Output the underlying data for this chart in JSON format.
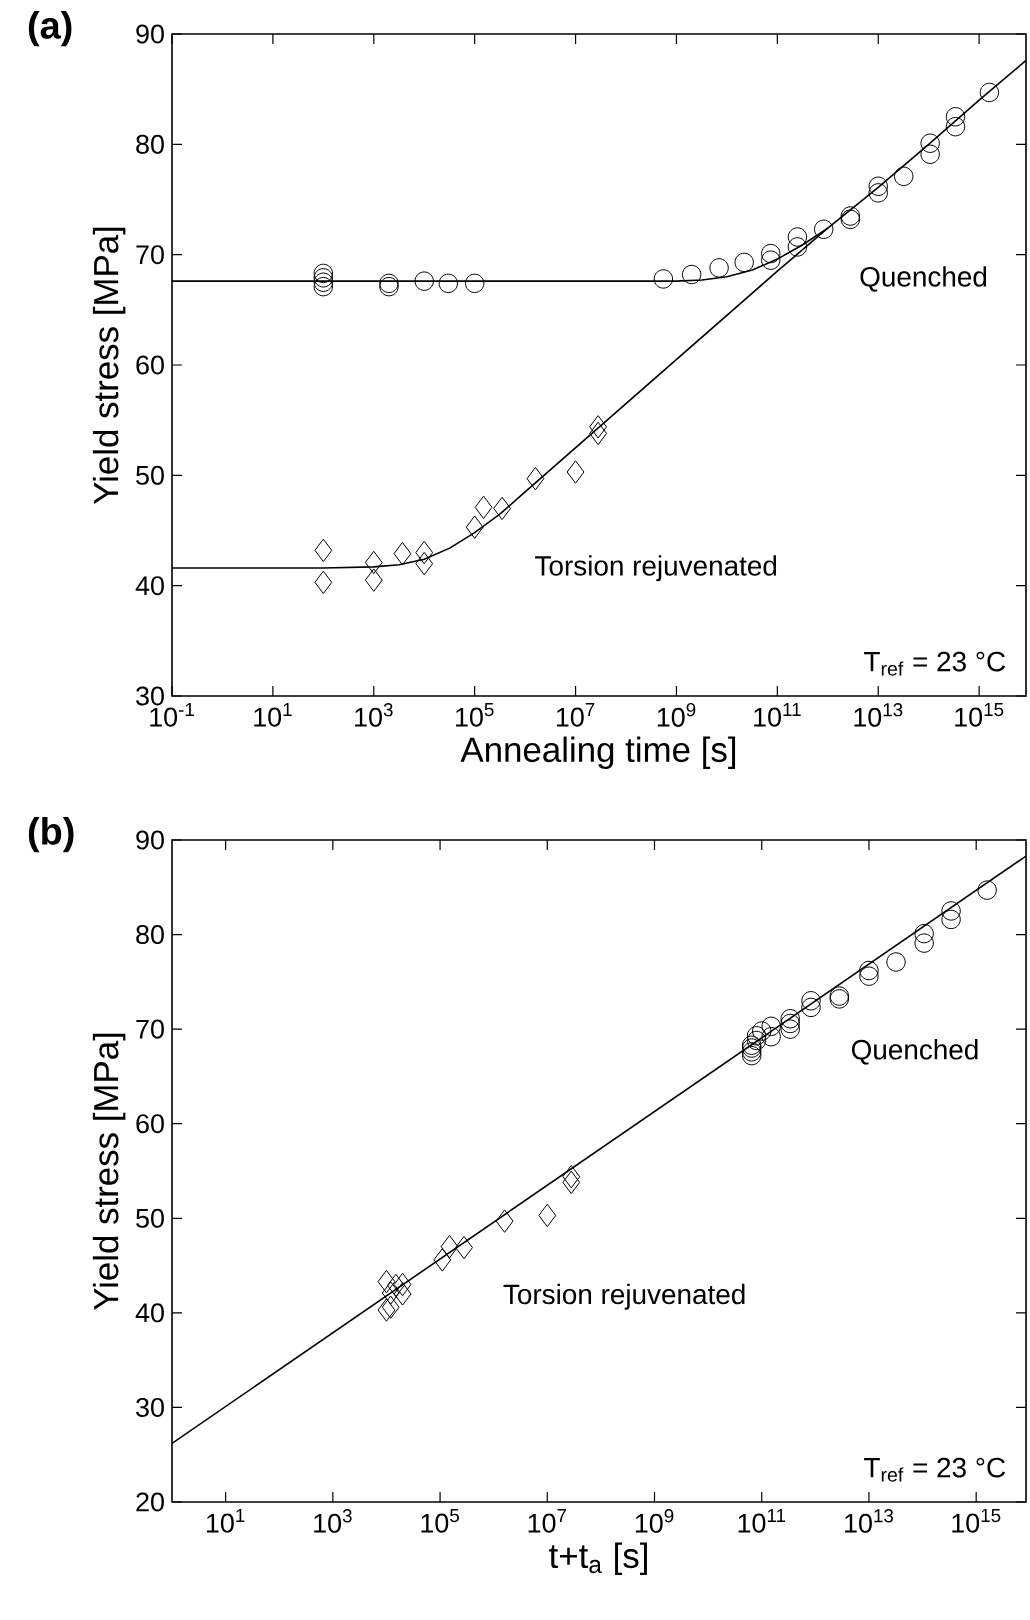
{
  "chart_data": [
    {
      "type": "scatter",
      "title": "(a)",
      "xlabel": "Annealing time [s]",
      "ylabel": "Yield stress [MPa]",
      "log": "x",
      "xlim": [
        0.1,
        8500000000000000.0
      ],
      "ylim": [
        30,
        90
      ],
      "xticks": [
        {
          "value": 0.1,
          "label": "10$^{-1}$"
        },
        {
          "value": 10.0,
          "label": "10$^{1}$"
        },
        {
          "value": 1000.0,
          "label": "10$^{3}$"
        },
        {
          "value": 100000.0,
          "label": "10$^{5}$"
        },
        {
          "value": 10000000.0,
          "label": "10$^{7}$"
        },
        {
          "value": 1000000000.0,
          "label": "10$^{9}$"
        },
        {
          "value": 100000000000.0,
          "label": "10$^{11}$"
        },
        {
          "value": 10000000000000.0,
          "label": "10$^{13}$"
        },
        {
          "value": 1000000000000000.0,
          "label": "10$^{15}$"
        }
      ],
      "yticks": [
        30,
        40,
        50,
        60,
        70,
        80,
        90
      ],
      "series": [
        {
          "type": "scatter",
          "marker": "circle",
          "color": "#000000",
          "x": [
            100.0,
            100.0,
            100.0,
            100.0,
            2000.0,
            2000.0,
            10000.0,
            30000.0,
            100000.0,
            550000000.0,
            2000000000.0,
            7000000000.0,
            22000000000.0,
            74000000000.0,
            74000000000.0,
            250000000000.0,
            250000000000.0,
            830000000000.0,
            2800000000000.0,
            2800000000000.0,
            10000000000000.0,
            10000000000000.0,
            32000000000000.0,
            107000000000000.0,
            107000000000000.0,
            340000000000000.0,
            340000000000000.0,
            1600000000000000.0
          ],
          "values": [
            68.3,
            67.9,
            67.5,
            67.1,
            67.4,
            67.1,
            67.6,
            67.4,
            67.4,
            67.8,
            68.2,
            68.8,
            69.3,
            70.1,
            69.5,
            70.7,
            71.6,
            72.3,
            73.5,
            73.2,
            75.6,
            76.2,
            77.1,
            79.1,
            80.1,
            81.6,
            82.5,
            84.7
          ]
        },
        {
          "type": "scatter",
          "marker": "diamond",
          "color": "#000000",
          "x": [
            100.0,
            100.0,
            1000.0,
            1000.0,
            3700.0,
            10000.0,
            10000.0,
            100000.0,
            150000.0,
            350000.0,
            1600000.0,
            10000000.0,
            28000000.0,
            28000000.0
          ],
          "values": [
            43.2,
            40.3,
            42.1,
            40.5,
            42.9,
            43.0,
            42.0,
            45.3,
            47.1,
            47.0,
            49.7,
            50.3,
            54.4,
            53.8
          ]
        },
        {
          "type": "line",
          "marker": "none",
          "color": "#000000",
          "x": [
            0.1,
            1000000000.0,
            3200000000.0,
            10000000000.0,
            32000000000.0,
            100000000000.0,
            320000000000.0,
            1000000000000.0,
            10000000000000.0,
            100000000000000.0,
            1000000000000000.0,
            8500000000000000.0
          ],
          "values": [
            67.6,
            67.6,
            67.7,
            68.0,
            68.6,
            69.6,
            70.9,
            72.4,
            76.1,
            80.0,
            84.0,
            87.6
          ]
        },
        {
          "type": "line",
          "marker": "none",
          "color": "#000000",
          "x": [
            0.1,
            100.0,
            1000.0,
            3200.0,
            10000.0,
            32000.0,
            100000.0,
            320000.0,
            1000000.0,
            10000000.0,
            100000000.0,
            1000000000.0,
            10000000000.0,
            100000000000.0,
            1000000000000.0
          ],
          "values": [
            41.6,
            41.6,
            41.7,
            41.9,
            42.4,
            43.4,
            44.8,
            46.5,
            48.5,
            52.5,
            56.5,
            60.5,
            64.5,
            68.5,
            72.4
          ]
        }
      ],
      "annotations": [
        "Quenched",
        "Torsion rejuvenated",
        "T$_{ref}$ = 23 °C"
      ]
    },
    {
      "type": "scatter",
      "title": "(b)",
      "xlabel": "t+t$_{a}$ [s]",
      "ylabel": "Yield stress [MPa]",
      "log": "x",
      "xlim": [
        1,
        8500000000000000.0
      ],
      "ylim": [
        20,
        90
      ],
      "xticks": [
        {
          "value": 10.0,
          "label": "10$^{1}$"
        },
        {
          "value": 1000.0,
          "label": "10$^{3}$"
        },
        {
          "value": 100000.0,
          "label": "10$^{5}$"
        },
        {
          "value": 10000000.0,
          "label": "10$^{7}$"
        },
        {
          "value": 1000000000.0,
          "label": "10$^{9}$"
        },
        {
          "value": 100000000000.0,
          "label": "10$^{11}$"
        },
        {
          "value": 10000000000000.0,
          "label": "10$^{13}$"
        },
        {
          "value": 1000000000000000.0,
          "label": "10$^{15}$"
        }
      ],
      "yticks": [
        20,
        30,
        40,
        50,
        60,
        70,
        80,
        90
      ],
      "series": [
        {
          "type": "scatter",
          "marker": "circle",
          "color": "#000000",
          "x": [
            65000000000.0,
            65000000000.0,
            65000000000.0,
            65000000000.0,
            80000000000.0,
            80000000000.0,
            100000000000.0,
            150000000000.0,
            150000000000.0,
            340000000000.0,
            340000000000.0,
            340000000000.0,
            830000000000.0,
            830000000000.0,
            2800000000000.0,
            2800000000000.0,
            10000000000000.0,
            10000000000000.0,
            32000000000000.0,
            107000000000000.0,
            107000000000000.0,
            340000000000000.0,
            340000000000000.0,
            1600000000000000.0
          ],
          "values": [
            67.2,
            67.6,
            68.0,
            68.3,
            68.8,
            69.3,
            69.8,
            70.3,
            69.2,
            70.0,
            70.6,
            71.1,
            72.3,
            73.0,
            73.5,
            73.2,
            75.6,
            76.2,
            77.1,
            79.1,
            80.1,
            81.6,
            82.5,
            84.7
          ]
        },
        {
          "type": "scatter",
          "marker": "diamond",
          "color": "#000000",
          "x": [
            10000.0,
            10000.0,
            12000.0,
            12000.0,
            15000.0,
            20000.0,
            20000.0,
            110000.0,
            150000.0,
            280000.0,
            1600000.0,
            10000000.0,
            28000000.0,
            28000000.0
          ],
          "values": [
            43.3,
            40.3,
            42.1,
            40.6,
            42.9,
            43.0,
            42.0,
            45.6,
            47.0,
            46.9,
            49.7,
            50.3,
            54.4,
            53.8
          ]
        },
        {
          "type": "line",
          "marker": "none",
          "color": "#000000",
          "x": [
            1,
            8500000000000000.0
          ],
          "values": [
            26.2,
            88.3
          ]
        }
      ],
      "annotations": [
        "Quenched",
        "Torsion rejuvenated",
        "T$_{ref}$ = 23 °C"
      ]
    }
  ]
}
